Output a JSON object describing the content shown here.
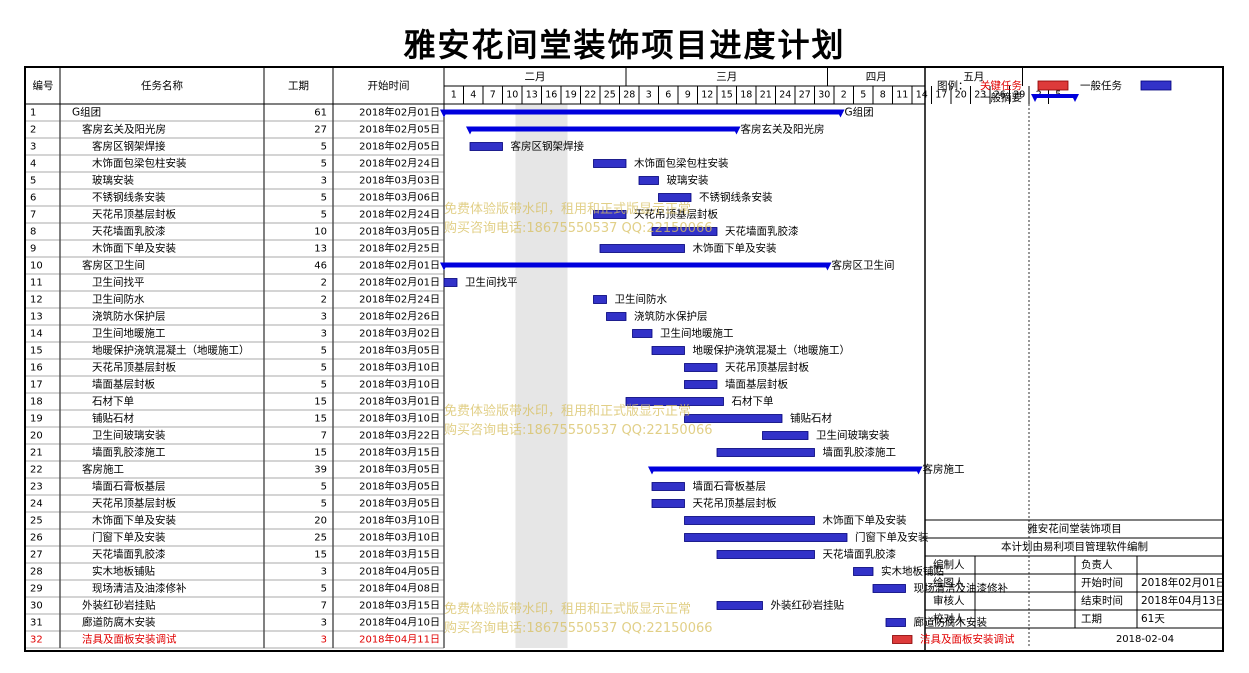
{
  "title": "雅安花间堂装饰项目进度计划",
  "headers": {
    "id": "编号",
    "name": "任务名称",
    "duration": "工期",
    "start": "开始时间"
  },
  "months": [
    "二月",
    "三月",
    "四月",
    "五月"
  ],
  "day_ticks": [
    "1",
    "4",
    "7",
    "10",
    "13",
    "16",
    "19",
    "22",
    "25",
    "28",
    "3",
    "6",
    "9",
    "12",
    "15",
    "18",
    "21",
    "24",
    "27",
    "30",
    "2",
    "5",
    "8",
    "11",
    "14",
    "17",
    "20",
    "23",
    "26",
    "29",
    "2",
    "5"
  ],
  "tasks": [
    {
      "id": "1",
      "name": "G组团",
      "indent": 0,
      "duration": "61",
      "start": "2018年02月01日",
      "type": "summary",
      "start_day": 0,
      "length": 61,
      "critical": false
    },
    {
      "id": "2",
      "name": "客房玄关及阳光房",
      "indent": 1,
      "duration": "27",
      "start": "2018年02月05日",
      "type": "summary",
      "start_day": 4,
      "length": 41,
      "critical": false
    },
    {
      "id": "3",
      "name": "客房区钢架焊接",
      "indent": 2,
      "duration": "5",
      "start": "2018年02月05日",
      "type": "task",
      "start_day": 4,
      "length": 5,
      "critical": false
    },
    {
      "id": "4",
      "name": "木饰面包梁包柱安装",
      "indent": 2,
      "duration": "5",
      "start": "2018年02月24日",
      "type": "task",
      "start_day": 23,
      "length": 5,
      "critical": false
    },
    {
      "id": "5",
      "name": "玻璃安装",
      "indent": 2,
      "duration": "3",
      "start": "2018年03月03日",
      "type": "task",
      "start_day": 30,
      "length": 3,
      "critical": false
    },
    {
      "id": "6",
      "name": "不锈钢线条安装",
      "indent": 2,
      "duration": "5",
      "start": "2018年03月06日",
      "type": "task",
      "start_day": 33,
      "length": 5,
      "critical": false
    },
    {
      "id": "7",
      "name": "天花吊顶基层封板",
      "indent": 2,
      "duration": "5",
      "start": "2018年02月24日",
      "type": "task",
      "start_day": 23,
      "length": 5,
      "critical": false
    },
    {
      "id": "8",
      "name": "天花墙面乳胶漆",
      "indent": 2,
      "duration": "10",
      "start": "2018年03月05日",
      "type": "task",
      "start_day": 32,
      "length": 10,
      "critical": false
    },
    {
      "id": "9",
      "name": "木饰面下单及安装",
      "indent": 2,
      "duration": "13",
      "start": "2018年02月25日",
      "type": "task",
      "start_day": 24,
      "length": 13,
      "critical": false
    },
    {
      "id": "10",
      "name": "客房区卫生间",
      "indent": 1,
      "duration": "46",
      "start": "2018年02月01日",
      "type": "summary",
      "start_day": 0,
      "length": 59,
      "critical": false
    },
    {
      "id": "11",
      "name": "卫生间找平",
      "indent": 2,
      "duration": "2",
      "start": "2018年02月01日",
      "type": "task",
      "start_day": 0,
      "length": 2,
      "critical": false
    },
    {
      "id": "12",
      "name": "卫生间防水",
      "indent": 2,
      "duration": "2",
      "start": "2018年02月24日",
      "type": "task",
      "start_day": 23,
      "length": 2,
      "critical": false
    },
    {
      "id": "13",
      "name": "浇筑防水保护层",
      "indent": 2,
      "duration": "3",
      "start": "2018年02月26日",
      "type": "task",
      "start_day": 25,
      "length": 3,
      "critical": false
    },
    {
      "id": "14",
      "name": "卫生间地暖施工",
      "indent": 2,
      "duration": "3",
      "start": "2018年03月02日",
      "type": "task",
      "start_day": 29,
      "length": 3,
      "critical": false
    },
    {
      "id": "15",
      "name": "地暖保护浇筑混凝土（地暖施工）",
      "indent": 2,
      "duration": "5",
      "start": "2018年03月05日",
      "type": "task",
      "start_day": 32,
      "length": 5,
      "critical": false
    },
    {
      "id": "16",
      "name": "天花吊顶基层封板",
      "indent": 2,
      "duration": "5",
      "start": "2018年03月10日",
      "type": "task",
      "start_day": 37,
      "length": 5,
      "critical": false
    },
    {
      "id": "17",
      "name": "墙面基层封板",
      "indent": 2,
      "duration": "5",
      "start": "2018年03月10日",
      "type": "task",
      "start_day": 37,
      "length": 5,
      "critical": false
    },
    {
      "id": "18",
      "name": "石材下单",
      "indent": 2,
      "duration": "15",
      "start": "2018年03月01日",
      "type": "task",
      "start_day": 28,
      "length": 15,
      "critical": false
    },
    {
      "id": "19",
      "name": "铺贴石材",
      "indent": 2,
      "duration": "15",
      "start": "2018年03月10日",
      "type": "task",
      "start_day": 37,
      "length": 15,
      "critical": false
    },
    {
      "id": "20",
      "name": "卫生间玻璃安装",
      "indent": 2,
      "duration": "7",
      "start": "2018年03月22日",
      "type": "task",
      "start_day": 49,
      "length": 7,
      "critical": false
    },
    {
      "id": "21",
      "name": "墙面乳胶漆施工",
      "indent": 2,
      "duration": "15",
      "start": "2018年03月15日",
      "type": "task",
      "start_day": 42,
      "length": 15,
      "critical": false
    },
    {
      "id": "22",
      "name": "客房施工",
      "indent": 1,
      "duration": "39",
      "start": "2018年03月05日",
      "type": "summary",
      "start_day": 32,
      "length": 41,
      "critical": false
    },
    {
      "id": "23",
      "name": "墙面石膏板基层",
      "indent": 2,
      "duration": "5",
      "start": "2018年03月05日",
      "type": "task",
      "start_day": 32,
      "length": 5,
      "critical": false
    },
    {
      "id": "24",
      "name": "天花吊顶基层封板",
      "indent": 2,
      "duration": "5",
      "start": "2018年03月05日",
      "type": "task",
      "start_day": 32,
      "length": 5,
      "critical": false
    },
    {
      "id": "25",
      "name": "木饰面下单及安装",
      "indent": 2,
      "duration": "20",
      "start": "2018年03月10日",
      "type": "task",
      "start_day": 37,
      "length": 20,
      "critical": false
    },
    {
      "id": "26",
      "name": "门窗下单及安装",
      "indent": 2,
      "duration": "25",
      "start": "2018年03月10日",
      "type": "task",
      "start_day": 37,
      "length": 25,
      "critical": false
    },
    {
      "id": "27",
      "name": "天花墙面乳胶漆",
      "indent": 2,
      "duration": "15",
      "start": "2018年03月15日",
      "type": "task",
      "start_day": 42,
      "length": 15,
      "critical": false
    },
    {
      "id": "28",
      "name": "实木地板铺贴",
      "indent": 2,
      "duration": "3",
      "start": "2018年04月05日",
      "type": "task",
      "start_day": 63,
      "length": 3,
      "critical": false
    },
    {
      "id": "29",
      "name": "现场清洁及油漆修补",
      "indent": 2,
      "duration": "5",
      "start": "2018年04月08日",
      "type": "task",
      "start_day": 66,
      "length": 5,
      "critical": false
    },
    {
      "id": "30",
      "name": "外装红砂岩挂贴",
      "indent": 1,
      "duration": "7",
      "start": "2018年03月15日",
      "type": "task",
      "start_day": 42,
      "length": 7,
      "critical": false
    },
    {
      "id": "31",
      "name": "廊道防腐木安装",
      "indent": 1,
      "duration": "3",
      "start": "2018年04月10日",
      "type": "task",
      "start_day": 68,
      "length": 3,
      "critical": false
    },
    {
      "id": "32",
      "name": "洁具及面板安装调试",
      "indent": 1,
      "duration": "3",
      "start": "2018年04月11日",
      "type": "task",
      "start_day": 69,
      "length": 3,
      "critical": true
    }
  ],
  "legend": {
    "label": "图例：",
    "critical": "关键任务",
    "normal": "一般任务",
    "summary": "一般摘要"
  },
  "info": {
    "project_name": "雅安花间堂装饰项目",
    "software_note": "本计划由易利项目管理软件编制",
    "editor_label": "编制人",
    "owner_label": "负责人",
    "drafter_label": "绘图人",
    "start_label": "开始时间",
    "start_value": "2018年02月01日",
    "reviewer_label": "审核人",
    "end_label": "结束时间",
    "end_value": "2018年04月13日",
    "checker_label": "校对人",
    "duration_label": "工期",
    "duration_value": "61天",
    "date": "2018-02-04"
  },
  "watermarks": [
    {
      "line1": "免费体验版带水印，租用和正式版显示正常",
      "line2": "购买咨询电话:18675550537 QQ:22150066"
    },
    {
      "line1": "免费体验版带水印，租用和正式版显示正常",
      "line2": "购买咨询电话:18675550537 QQ:22150066"
    },
    {
      "line1": "免费体验版带水印，租用和正式版显示正常",
      "line2": "购买咨询电话:18675550537 QQ:22150066"
    }
  ],
  "colors": {
    "task_fill": "#3232c8",
    "task_border": "#00007a",
    "summary": "#0000dd",
    "critical_fill": "#dd3a3a",
    "critical_text": "#e00000",
    "grid": "#000000",
    "shade": "#e6e6e6",
    "watermark": "#d8c060"
  }
}
